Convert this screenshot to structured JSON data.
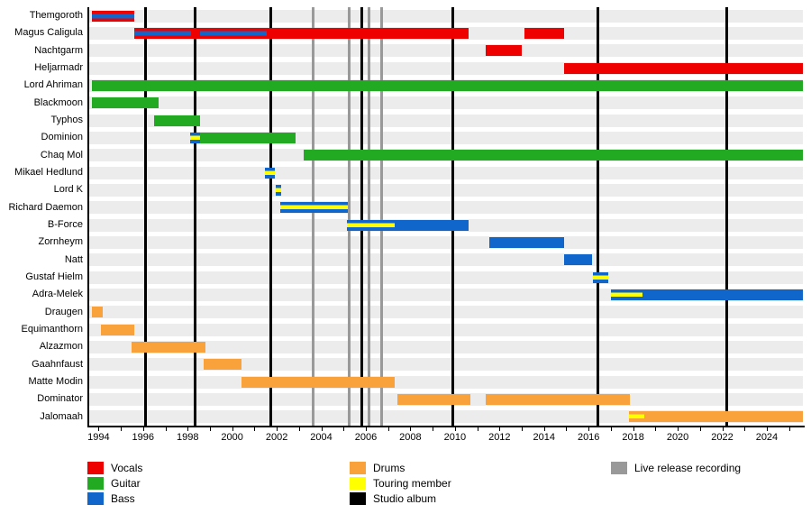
{
  "chart_data": {
    "type": "bar",
    "subtype": "band-member-timeline-gantt",
    "x_axis": {
      "min": 1993.5,
      "max": 2025.62,
      "tick_years": [
        1994,
        1995,
        1996,
        1997,
        1998,
        1999,
        2000,
        2001,
        2002,
        2003,
        2004,
        2005,
        2006,
        2007,
        2008,
        2009,
        2010,
        2011,
        2012,
        2013,
        2014,
        2015,
        2016,
        2017,
        2018,
        2019,
        2020,
        2021,
        2022,
        2023,
        2024,
        2025
      ],
      "label_years": [
        1994,
        1996,
        1998,
        2000,
        2002,
        2004,
        2006,
        2008,
        2010,
        2012,
        2014,
        2016,
        2018,
        2020,
        2022,
        2024
      ]
    },
    "members": [
      {
        "name": "Themgoroth",
        "segments": [
          {
            "start": 1993.7,
            "end": 1995.6,
            "role": "vocals+bass"
          }
        ]
      },
      {
        "name": "Magus Caligula",
        "segments": [
          {
            "start": 1995.6,
            "end": 1998.15,
            "role": "vocals+bass"
          },
          {
            "start": 1998.15,
            "end": 1998.55,
            "role": "vocals"
          },
          {
            "start": 1998.55,
            "end": 2001.55,
            "role": "vocals+bass"
          },
          {
            "start": 2001.55,
            "end": 2010.6,
            "role": "vocals"
          },
          {
            "start": 2013.1,
            "end": 2014.9,
            "role": "vocals"
          }
        ]
      },
      {
        "name": "Nachtgarm",
        "segments": [
          {
            "start": 2011.4,
            "end": 2013.0,
            "role": "vocals"
          }
        ]
      },
      {
        "name": "Heljarmadr",
        "segments": [
          {
            "start": 2014.9,
            "end": 2025.62,
            "role": "vocals"
          }
        ]
      },
      {
        "name": "Lord Ahriman",
        "segments": [
          {
            "start": 1993.7,
            "end": 2025.62,
            "role": "guitar"
          }
        ]
      },
      {
        "name": "Blackmoon",
        "segments": [
          {
            "start": 1993.7,
            "end": 1996.7,
            "role": "guitar"
          }
        ]
      },
      {
        "name": "Typhos",
        "segments": [
          {
            "start": 1996.5,
            "end": 1998.55,
            "role": "guitar"
          }
        ]
      },
      {
        "name": "Dominion",
        "segments": [
          {
            "start": 1998.1,
            "end": 1998.55,
            "role": "touring-bass"
          },
          {
            "start": 1998.55,
            "end": 2002.85,
            "role": "guitar"
          }
        ]
      },
      {
        "name": "Chaq Mol",
        "segments": [
          {
            "start": 2003.2,
            "end": 2025.62,
            "role": "guitar"
          }
        ]
      },
      {
        "name": "Mikael Hedlund",
        "segments": [
          {
            "start": 2001.45,
            "end": 2001.9,
            "role": "touring-bass"
          }
        ]
      },
      {
        "name": "Lord K",
        "segments": [
          {
            "start": 2001.95,
            "end": 2002.2,
            "role": "touring-bass"
          }
        ]
      },
      {
        "name": "Richard Daemon",
        "segments": [
          {
            "start": 2002.15,
            "end": 2005.2,
            "role": "touring-bass"
          }
        ]
      },
      {
        "name": "B-Force",
        "segments": [
          {
            "start": 2005.15,
            "end": 2007.3,
            "role": "touring-bass"
          },
          {
            "start": 2007.3,
            "end": 2010.6,
            "role": "bass"
          }
        ]
      },
      {
        "name": "Zornheym",
        "segments": [
          {
            "start": 2011.55,
            "end": 2014.9,
            "role": "bass"
          }
        ]
      },
      {
        "name": "Natt",
        "segments": [
          {
            "start": 2014.9,
            "end": 2016.15,
            "role": "bass"
          }
        ]
      },
      {
        "name": "Gustaf Hielm",
        "segments": [
          {
            "start": 2016.2,
            "end": 2016.9,
            "role": "touring-bass"
          }
        ]
      },
      {
        "name": "Adra-Melek",
        "segments": [
          {
            "start": 2017.0,
            "end": 2018.4,
            "role": "touring-bass"
          },
          {
            "start": 2018.4,
            "end": 2025.62,
            "role": "bass"
          }
        ]
      },
      {
        "name": "Draugen",
        "segments": [
          {
            "start": 1993.7,
            "end": 1994.2,
            "role": "drums"
          }
        ]
      },
      {
        "name": "Equimanthorn",
        "segments": [
          {
            "start": 1994.1,
            "end": 1995.6,
            "role": "drums"
          }
        ]
      },
      {
        "name": "Alzazmon",
        "segments": [
          {
            "start": 1995.5,
            "end": 1998.8,
            "role": "drums"
          }
        ]
      },
      {
        "name": "Gaahnfaust",
        "segments": [
          {
            "start": 1998.7,
            "end": 2000.4,
            "role": "drums"
          }
        ]
      },
      {
        "name": "Matte Modin",
        "segments": [
          {
            "start": 2000.4,
            "end": 2007.3,
            "role": "drums"
          }
        ]
      },
      {
        "name": "Dominator",
        "segments": [
          {
            "start": 2007.4,
            "end": 2010.7,
            "role": "drums"
          },
          {
            "start": 2011.4,
            "end": 2017.85,
            "role": "drums"
          }
        ]
      },
      {
        "name": "Jalomaah",
        "segments": [
          {
            "start": 2017.8,
            "end": 2018.5,
            "role": "touring-drums"
          },
          {
            "start": 2018.5,
            "end": 2025.62,
            "role": "drums"
          }
        ]
      }
    ],
    "studio_albums": [
      1996.1,
      1998.35,
      2001.75,
      2005.8,
      2009.9,
      2016.4,
      2022.2
    ],
    "live_recordings": [
      2003.65,
      2005.25,
      2006.15,
      2006.7
    ],
    "colors": {
      "vocals": "#ee0000",
      "guitar": "#22aa22",
      "bass": "#1166cc",
      "drums": "#f9a13a",
      "touring": "#ffff00",
      "studio_album": "#000000",
      "live_recording": "#999999",
      "row_track": "#ececec"
    }
  },
  "legend": {
    "columns": [
      [
        {
          "label": "Vocals",
          "role": "vocals"
        },
        {
          "label": "Guitar",
          "role": "guitar"
        },
        {
          "label": "Bass",
          "role": "bass"
        }
      ],
      [
        {
          "label": "Drums",
          "role": "drums"
        },
        {
          "label": "Touring member",
          "role": "touring"
        },
        {
          "label": "Studio album",
          "role": "studio_album"
        }
      ],
      [
        {
          "label": "Live release recording",
          "role": "live_recording"
        }
      ]
    ]
  }
}
